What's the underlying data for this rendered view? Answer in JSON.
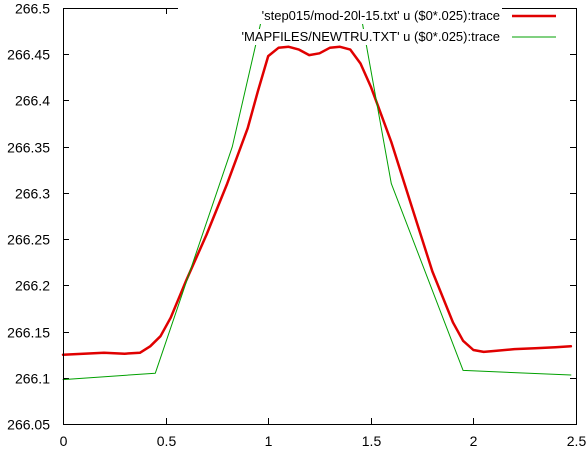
{
  "chart_data": {
    "type": "line",
    "title": "",
    "xlabel": "",
    "ylabel": "",
    "xlim": [
      0,
      2.5
    ],
    "ylim": [
      266.05,
      266.5
    ],
    "grid": false,
    "legend_position": "top-right",
    "x_ticks": [
      {
        "value": 0,
        "label": "0"
      },
      {
        "value": 0.5,
        "label": "0.5"
      },
      {
        "value": 1,
        "label": "1"
      },
      {
        "value": 1.5,
        "label": "1.5"
      },
      {
        "value": 2,
        "label": "2"
      },
      {
        "value": 2.5,
        "label": "2.5"
      }
    ],
    "y_ticks": [
      {
        "value": 266.05,
        "label": "266.05"
      },
      {
        "value": 266.1,
        "label": "266.1"
      },
      {
        "value": 266.15,
        "label": "266.15"
      },
      {
        "value": 266.2,
        "label": "266.2"
      },
      {
        "value": 266.25,
        "label": "266.25"
      },
      {
        "value": 266.3,
        "label": "266.3"
      },
      {
        "value": 266.35,
        "label": "266.35"
      },
      {
        "value": 266.4,
        "label": "266.4"
      },
      {
        "value": 266.45,
        "label": "266.45"
      },
      {
        "value": 266.5,
        "label": "266.5"
      }
    ],
    "series": [
      {
        "name": "'step015/mod-20l-15.txt' u ($0*.025):trace",
        "color": "#e00000",
        "x": [
          0,
          0.1,
          0.2,
          0.3,
          0.375,
          0.425,
          0.475,
          0.525,
          0.6,
          0.7,
          0.8,
          0.9,
          0.95,
          1.0,
          1.05,
          1.1,
          1.15,
          1.2,
          1.25,
          1.3,
          1.35,
          1.4,
          1.45,
          1.5,
          1.55,
          1.6,
          1.7,
          1.8,
          1.9,
          1.95,
          2.0,
          2.05,
          2.1,
          2.2,
          2.3,
          2.4,
          2.475
        ],
        "y": [
          266.125,
          266.126,
          266.127,
          266.126,
          266.127,
          266.134,
          266.145,
          266.165,
          266.205,
          266.255,
          266.31,
          266.37,
          266.41,
          266.448,
          266.457,
          266.458,
          266.455,
          266.449,
          266.451,
          266.457,
          266.458,
          266.455,
          266.44,
          266.415,
          266.385,
          266.355,
          266.285,
          266.215,
          266.16,
          266.14,
          266.13,
          266.128,
          266.129,
          266.131,
          266.132,
          266.133,
          266.134
        ]
      },
      {
        "name": "'MAPFILES/NEWTRU.TXT' u ($0*.025):trace",
        "color": "#00a000",
        "x": [
          0,
          0.45,
          0.825,
          0.975,
          1.45,
          1.6,
          1.95,
          2.475
        ],
        "y": [
          266.098,
          266.105,
          266.35,
          266.495,
          266.495,
          266.31,
          266.108,
          266.103
        ]
      }
    ]
  }
}
